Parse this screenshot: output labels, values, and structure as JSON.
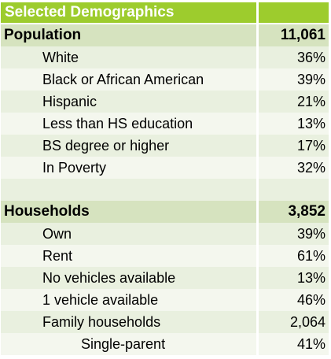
{
  "title": "Selected Demographics",
  "population": {
    "label": "Population",
    "value": "11,061",
    "items": [
      {
        "label": "White",
        "value": "36%"
      },
      {
        "label": "Black or African American",
        "value": "39%"
      },
      {
        "label": "Hispanic",
        "value": "21%"
      },
      {
        "label": "Less than HS education",
        "value": "13%"
      },
      {
        "label": "BS degree or higher",
        "value": "17%"
      },
      {
        "label": "In Poverty",
        "value": "32%"
      }
    ]
  },
  "households": {
    "label": "Households",
    "value": "3,852",
    "items": [
      {
        "label": "Own",
        "value": "39%"
      },
      {
        "label": "Rent",
        "value": "61%"
      },
      {
        "label": "No vehicles available",
        "value": "13%"
      },
      {
        "label": "1 vehicle available",
        "value": "46%"
      },
      {
        "label": "Family households",
        "value": "2,064"
      },
      {
        "label": "Single-parent",
        "value": "41%"
      }
    ]
  },
  "colors": {
    "header": "#9dcc2d",
    "section": "#d6e3bf",
    "row_a": "#e9f0df",
    "row_b": "#f4f7ee"
  }
}
